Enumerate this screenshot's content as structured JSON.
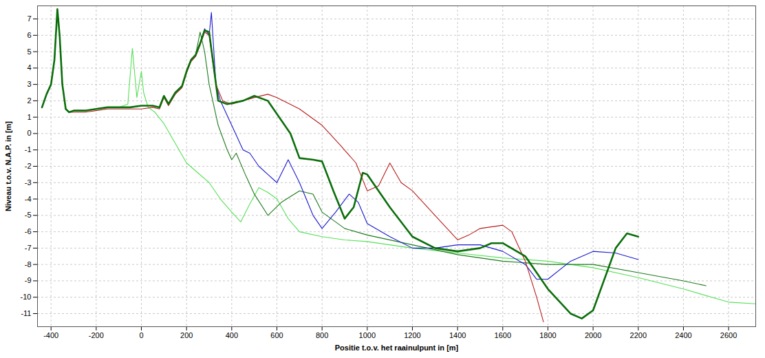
{
  "chart_data": {
    "type": "line",
    "x_label": "Positie t.o.v. het raainulpunt in [m]",
    "y_label": "Niveau t.o.v. N.A.P. in [m]",
    "xlim": [
      -460,
      2720
    ],
    "ylim": [
      -11.8,
      7.8
    ],
    "xticks": [
      -400,
      -200,
      0,
      200,
      400,
      600,
      800,
      1000,
      1200,
      1400,
      1600,
      1800,
      2000,
      2200,
      2400,
      2600
    ],
    "yticks": [
      -11,
      -10,
      -9,
      -8,
      -7,
      -6,
      -5,
      -4,
      -3,
      -2,
      -1,
      0,
      1,
      2,
      3,
      4,
      5,
      6,
      7
    ],
    "grid": true,
    "series": [
      {
        "color": "#55e055",
        "line_style": "solid",
        "x": [
          -440,
          -420,
          -400,
          -385,
          -372,
          -362,
          -350,
          -335,
          -320,
          -300,
          -250,
          -200,
          -150,
          -100,
          -60,
          -40,
          -20,
          0,
          10,
          30,
          60,
          100,
          150,
          200,
          250,
          300,
          350,
          400,
          440,
          480,
          520,
          560,
          600,
          650,
          700,
          800,
          900,
          1000,
          1200,
          1400,
          1600,
          1800,
          2000,
          2200,
          2400,
          2600,
          2720
        ],
        "values": [
          1.6,
          2.4,
          3,
          4.5,
          7.6,
          6,
          3,
          1.5,
          1.3,
          1.4,
          1.4,
          1.5,
          1.6,
          1.6,
          1.8,
          5.2,
          2.2,
          3.8,
          2.5,
          1.6,
          1.3,
          0.6,
          -0.6,
          -1.8,
          -2.4,
          -3,
          -4,
          -4.8,
          -5.4,
          -4.3,
          -3.3,
          -3.6,
          -4,
          -5.2,
          -6,
          -6.3,
          -6.5,
          -6.6,
          -7,
          -7.3,
          -7.6,
          -7.8,
          -8.2,
          -8.8,
          -9.5,
          -10.3,
          -10.4
        ]
      },
      {
        "color": "#1b7a1b",
        "line_style": "solid",
        "x": [
          -440,
          -420,
          -400,
          -385,
          -372,
          -362,
          -350,
          -335,
          -320,
          -300,
          -250,
          -200,
          -150,
          -100,
          -50,
          0,
          50,
          80,
          100,
          120,
          150,
          180,
          200,
          220,
          240,
          260,
          280,
          300,
          340,
          380,
          400,
          420,
          460,
          500,
          560,
          620,
          700,
          760,
          800,
          900,
          1000,
          1200,
          1400,
          1600,
          1800,
          2000,
          2200,
          2400,
          2500
        ],
        "values": [
          1.6,
          2.4,
          3,
          4.5,
          7.6,
          6,
          3,
          1.5,
          1.3,
          1.4,
          1.4,
          1.5,
          1.6,
          1.6,
          1.6,
          1.7,
          1.7,
          1.6,
          2.3,
          1.8,
          2.5,
          2.9,
          3.8,
          4.5,
          4.8,
          6.2,
          5,
          3,
          0.5,
          -1,
          -1.6,
          -1.2,
          -2.5,
          -3.7,
          -5,
          -4.2,
          -3.5,
          -3.7,
          -4.8,
          -5.8,
          -6.2,
          -6.8,
          -7.4,
          -7.8,
          -8,
          -8,
          -8.5,
          -9,
          -9.3
        ]
      },
      {
        "color": "#1a1acc",
        "line_style": "solid",
        "x": [
          -440,
          -420,
          -400,
          -385,
          -372,
          -362,
          -350,
          -335,
          -320,
          -300,
          -250,
          -200,
          -150,
          -100,
          -50,
          0,
          50,
          80,
          100,
          120,
          150,
          180,
          200,
          220,
          240,
          260,
          280,
          300,
          310,
          330,
          350,
          400,
          450,
          480,
          520,
          560,
          600,
          650,
          700,
          760,
          800,
          860,
          920,
          960,
          1000,
          1100,
          1200,
          1300,
          1400,
          1500,
          1600,
          1700,
          1750,
          1800,
          1900,
          2000,
          2100,
          2200
        ],
        "values": [
          1.6,
          2.4,
          3,
          4.5,
          7.6,
          6,
          3,
          1.5,
          1.3,
          1.4,
          1.4,
          1.5,
          1.6,
          1.6,
          1.6,
          1.7,
          1.7,
          1.6,
          2.3,
          1.8,
          2.5,
          2.9,
          3.8,
          4.5,
          4.8,
          5.5,
          6.4,
          6,
          7.4,
          3,
          2,
          0.5,
          -1,
          -1.2,
          -2,
          -2.5,
          -3,
          -1.6,
          -3,
          -5,
          -5.8,
          -4.8,
          -3.7,
          -4.2,
          -5.5,
          -6.3,
          -7,
          -7,
          -6.8,
          -6.8,
          -7.2,
          -8,
          -8.9,
          -8.9,
          -7.8,
          -7.2,
          -7.3,
          -7.7
        ]
      },
      {
        "color": "#b81c1c",
        "line_style": "solid",
        "x": [
          -440,
          -420,
          -400,
          -385,
          -372,
          -362,
          -350,
          -335,
          -320,
          -300,
          -250,
          -200,
          -150,
          -100,
          -50,
          0,
          50,
          80,
          100,
          120,
          150,
          180,
          200,
          220,
          240,
          260,
          280,
          300,
          330,
          360,
          400,
          500,
          560,
          600,
          700,
          800,
          880,
          950,
          1000,
          1050,
          1100,
          1150,
          1200,
          1300,
          1400,
          1450,
          1500,
          1600,
          1640,
          1700,
          1750,
          1780
        ],
        "values": [
          1.6,
          2.4,
          3,
          4.5,
          7.6,
          6,
          3,
          1.5,
          1.3,
          1.3,
          1.3,
          1.4,
          1.5,
          1.5,
          1.5,
          1.5,
          1.6,
          1.5,
          2.2,
          1.7,
          2.4,
          2.8,
          3.7,
          4.4,
          4.7,
          5.4,
          6.2,
          6,
          3,
          2,
          1.8,
          2.2,
          2.4,
          2.2,
          1.5,
          0.5,
          -0.7,
          -1.8,
          -3.5,
          -3.2,
          -1.8,
          -3,
          -3.5,
          -5,
          -6.5,
          -6.2,
          -5.8,
          -5.6,
          -6,
          -7.8,
          -10,
          -11.5
        ]
      },
      {
        "color": "#0a6e0a",
        "line_style": "solid",
        "x": [
          -440,
          -420,
          -400,
          -385,
          -372,
          -362,
          -350,
          -335,
          -320,
          -300,
          -250,
          -200,
          -150,
          -100,
          -50,
          0,
          50,
          80,
          100,
          120,
          150,
          180,
          200,
          220,
          240,
          260,
          280,
          300,
          340,
          380,
          450,
          500,
          560,
          600,
          660,
          700,
          760,
          800,
          850,
          900,
          940,
          980,
          1000,
          1100,
          1200,
          1300,
          1400,
          1500,
          1550,
          1600,
          1700,
          1800,
          1900,
          1950,
          2000,
          2100,
          2150,
          2200
        ],
        "values": [
          1.6,
          2.4,
          3,
          4.5,
          7.6,
          6,
          3,
          1.5,
          1.3,
          1.4,
          1.4,
          1.5,
          1.6,
          1.6,
          1.6,
          1.7,
          1.7,
          1.6,
          2.3,
          1.8,
          2.5,
          2.9,
          3.8,
          4.5,
          4.8,
          5.5,
          6.3,
          6.2,
          2,
          1.8,
          2,
          2.3,
          2,
          1.2,
          0,
          -1.5,
          -1.6,
          -1.7,
          -3.5,
          -5.2,
          -4.5,
          -2.4,
          -2.5,
          -4.5,
          -6.3,
          -7,
          -7.2,
          -7,
          -6.7,
          -6.7,
          -7.5,
          -9.5,
          -11,
          -11.3,
          -10.8,
          -7,
          -6.1,
          -6.3
        ]
      }
    ]
  }
}
